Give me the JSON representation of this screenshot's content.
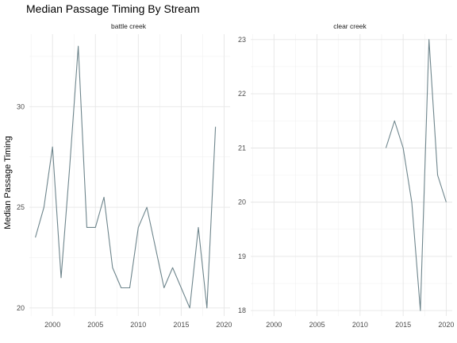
{
  "chart_data": {
    "type": "line",
    "title": "Median Passage Timing By Stream",
    "ylabel": "Median Passage Timing",
    "xlabel": "",
    "color": "#6e858c",
    "grid": true,
    "facets": [
      {
        "label": "battle creek",
        "xlim": [
          1997.3,
          2020.7
        ],
        "ylim": [
          19.6,
          33.6
        ],
        "x_ticks": [
          2000,
          2005,
          2010,
          2015,
          2020
        ],
        "x_tick_labels": [
          "2000",
          "2005",
          "2010",
          "2015",
          "2020"
        ],
        "y_ticks": [
          20,
          25,
          30
        ],
        "y_tick_labels": [
          "20",
          "25",
          "30"
        ],
        "x": [
          1998,
          1999,
          2000,
          2001,
          2002,
          2003,
          2004,
          2005,
          2006,
          2007,
          2008,
          2009,
          2010,
          2011,
          2012,
          2013,
          2014,
          2015,
          2016,
          2017,
          2018,
          2019
        ],
        "y": [
          23.5,
          25.0,
          28.0,
          21.5,
          27.0,
          33.0,
          24.0,
          24.0,
          25.5,
          22.0,
          21.0,
          21.0,
          24.0,
          25.0,
          23.0,
          21.0,
          22.0,
          21.0,
          20.0,
          24.0,
          20.0,
          29.0
        ]
      },
      {
        "label": "clear creek",
        "xlim": [
          1997.3,
          2020.7
        ],
        "ylim": [
          17.9,
          23.1
        ],
        "x_ticks": [
          2000,
          2005,
          2010,
          2015,
          2020
        ],
        "x_tick_labels": [
          "2000",
          "2005",
          "2010",
          "2015",
          "2020"
        ],
        "y_ticks": [
          18,
          19,
          20,
          21,
          22,
          23
        ],
        "y_tick_labels": [
          "18",
          "19",
          "20",
          "21",
          "22",
          "23"
        ],
        "x": [
          2013,
          2014,
          2015,
          2016,
          2017,
          2018,
          2019,
          2020
        ],
        "y": [
          21.0,
          21.5,
          21.0,
          20.0,
          18.0,
          23.0,
          20.5,
          20.0
        ]
      }
    ]
  }
}
